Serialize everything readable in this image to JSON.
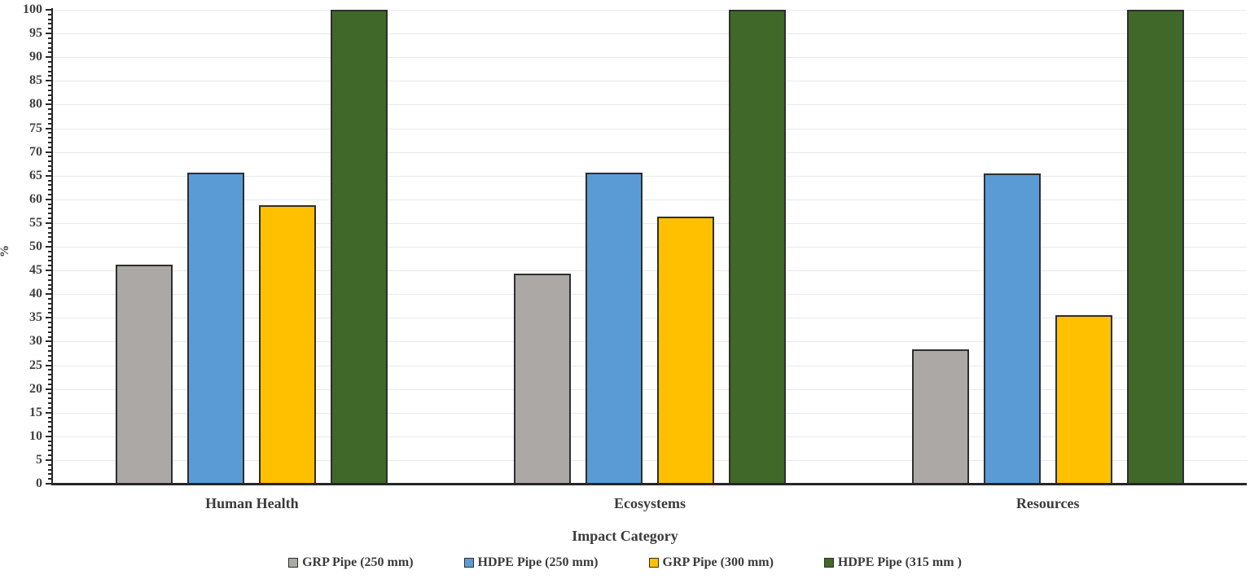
{
  "chart_data": {
    "type": "bar",
    "title": "",
    "xlabel": "Impact Category",
    "ylabel": "%",
    "ylim": [
      0,
      100
    ],
    "ytick_step": 5,
    "minor_tick_step": 1,
    "grid": true,
    "legend_position": "bottom",
    "categories": [
      "Human Health",
      "Ecosystems",
      "Resources"
    ],
    "series": [
      {
        "name": "GRP Pipe (250 mm)",
        "color": "#aba8a5",
        "values": [
          46.3,
          44.4,
          28.3
        ]
      },
      {
        "name": "HDPE Pipe (250 mm)",
        "color": "#5b9bd5",
        "values": [
          65.7,
          65.6,
          65.5
        ]
      },
      {
        "name": "GRP Pipe (300 mm)",
        "color": "#ffc000",
        "values": [
          58.8,
          56.4,
          35.5
        ]
      },
      {
        "name": "HDPE Pipe (315 mm )",
        "color": "#406828",
        "values": [
          100,
          100,
          100
        ]
      }
    ],
    "colors": {
      "axis": "#262626",
      "gridline": "#e9e9e9",
      "text": "#3b3b3b"
    }
  }
}
